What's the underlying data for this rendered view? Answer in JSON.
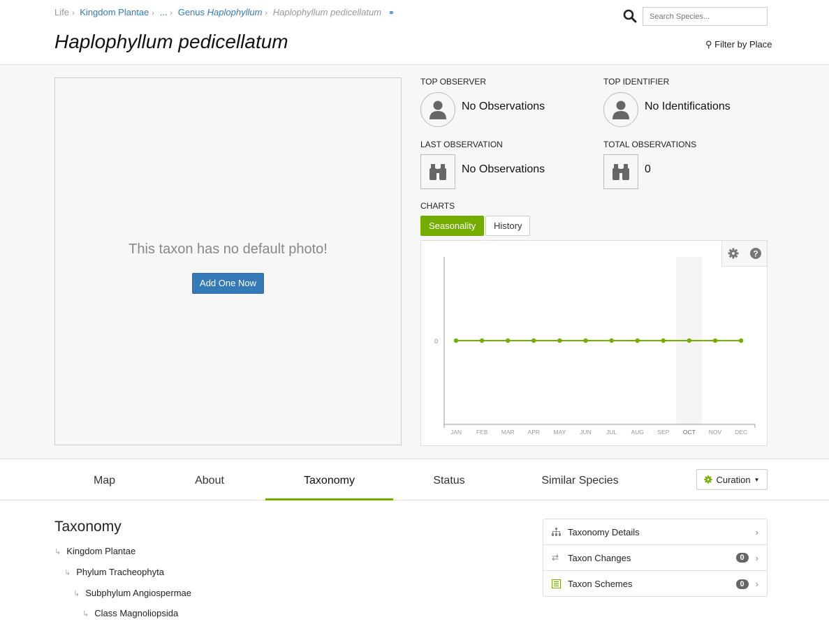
{
  "breadcrumb": {
    "life": "Life",
    "kingdom": "Kingdom Plantae",
    "ellipsis": "...",
    "genus_prefix": "Genus",
    "genus_name": "Haplophyllum",
    "current": "Haplophyllum pedicellatum"
  },
  "title": "Haplophyllum pedicellatum",
  "search": {
    "placeholder": "Search Species..."
  },
  "filter_label": "Filter by Place",
  "photo": {
    "message": "This taxon has no default photo!",
    "button": "Add One Now"
  },
  "stats": {
    "top_observer": {
      "label": "TOP OBSERVER",
      "value": "No Observations"
    },
    "top_identifier": {
      "label": "TOP IDENTIFIER",
      "value": "No Identifications"
    },
    "last_observation": {
      "label": "LAST OBSERVATION",
      "value": "No Observations"
    },
    "total_observations": {
      "label": "TOTAL OBSERVATIONS",
      "value": "0"
    }
  },
  "charts": {
    "label": "CHARTS",
    "tabs": [
      {
        "label": "Seasonality",
        "active": true
      },
      {
        "label": "History",
        "active": false
      }
    ]
  },
  "chart_data": {
    "type": "line",
    "categories": [
      "JAN",
      "FEB",
      "MAR",
      "APR",
      "MAY",
      "JUN",
      "JUL",
      "AUG",
      "SEP",
      "OCT",
      "NOV",
      "DEC"
    ],
    "values": [
      0,
      0,
      0,
      0,
      0,
      0,
      0,
      0,
      0,
      0,
      0,
      0
    ],
    "yticks": [
      "0"
    ],
    "highlight": "OCT",
    "color": "#74ac00",
    "highlight_color": "#f4f4f4"
  },
  "nav_tabs": [
    {
      "label": "Map"
    },
    {
      "label": "About"
    },
    {
      "label": "Taxonomy",
      "active": true
    },
    {
      "label": "Status"
    },
    {
      "label": "Similar Species"
    }
  ],
  "curation": {
    "label": "Curation"
  },
  "taxonomy": {
    "heading": "Taxonomy",
    "tree": [
      "Kingdom Plantae",
      "Phylum Tracheophyta",
      "Subphylum Angiospermae",
      "Class Magnoliopsida"
    ]
  },
  "panel": [
    {
      "label": "Taxonomy Details",
      "icon": "hierarchy-icon"
    },
    {
      "label": "Taxon Changes",
      "icon": "shuffle-icon",
      "count": "0"
    },
    {
      "label": "Taxon Schemes",
      "icon": "list-icon",
      "count": "0"
    }
  ],
  "colors": {
    "accent": "#74ac00",
    "link": "#337ab7"
  }
}
